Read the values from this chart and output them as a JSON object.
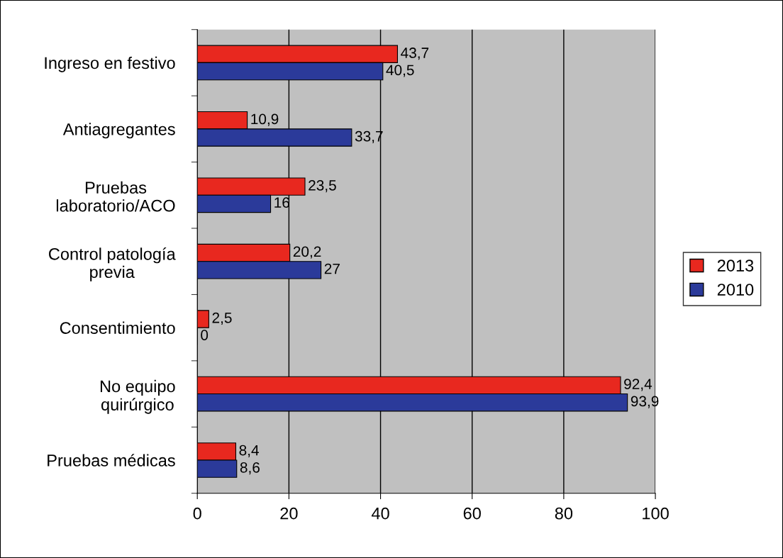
{
  "chart_data": {
    "type": "bar",
    "orientation": "horizontal",
    "categories": [
      "Ingreso en festivo",
      "Antiagregantes",
      "Pruebas\nlaboratorio/ACO",
      "Control patología\nprevia",
      "Consentimiento",
      "No equipo\nquirúrgico",
      "Pruebas médicas"
    ],
    "series": [
      {
        "name": "2013",
        "color": "#e8281f",
        "values": [
          43.7,
          10.9,
          23.5,
          20.2,
          2.5,
          92.4,
          8.4
        ],
        "value_labels": [
          "43,7",
          "10,9",
          "23,5",
          "20,2",
          "2,5",
          "92,4",
          "8,4"
        ]
      },
      {
        "name": "2010",
        "color": "#2b3a9a",
        "values": [
          40.5,
          33.7,
          16,
          27,
          0,
          93.9,
          8.6
        ],
        "value_labels": [
          "40,5",
          "33,7",
          "16",
          "27",
          "0",
          "93,9",
          "8,6"
        ]
      }
    ],
    "xlim": [
      0,
      100
    ],
    "xticks": [
      0,
      20,
      40,
      60,
      80,
      100
    ],
    "grid": "x",
    "legend": "right"
  }
}
